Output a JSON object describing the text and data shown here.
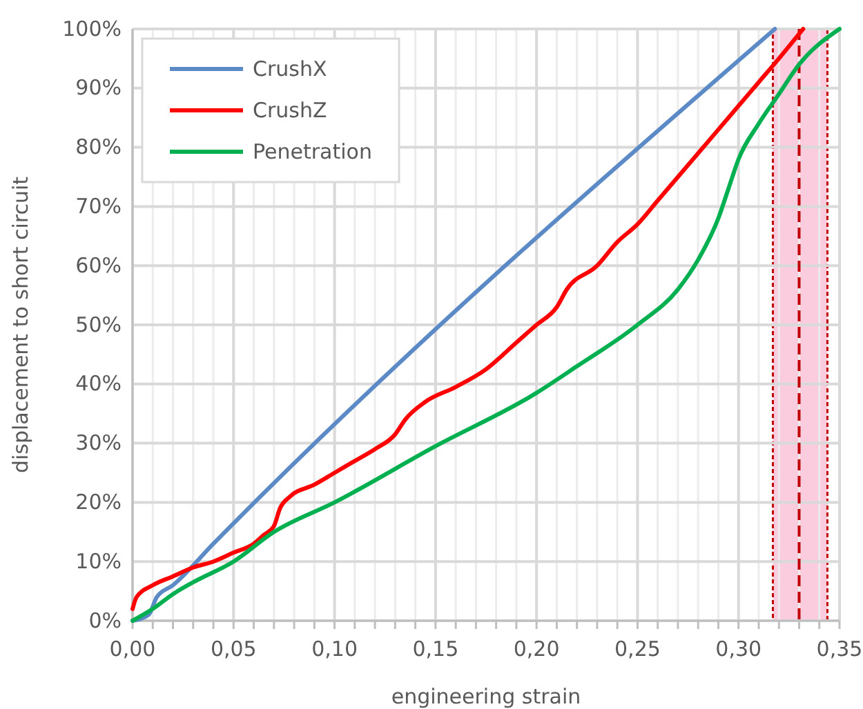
{
  "chart_data": {
    "type": "line",
    "xlabel": "engineering strain",
    "ylabel": "displacement to short circuit",
    "xlim": [
      0,
      0.35
    ],
    "ylim": [
      0,
      100
    ],
    "xticks": [
      {
        "value": 0,
        "label": "0,00"
      },
      {
        "value": 0.01,
        "label": null
      },
      {
        "value": 0.02,
        "label": null
      },
      {
        "value": 0.03,
        "label": null
      },
      {
        "value": 0.04,
        "label": null
      },
      {
        "value": 0.05,
        "label": "0,05"
      },
      {
        "value": 0.06,
        "label": null
      },
      {
        "value": 0.07,
        "label": null
      },
      {
        "value": 0.08,
        "label": null
      },
      {
        "value": 0.09,
        "label": null
      },
      {
        "value": 0.1,
        "label": "0,10"
      },
      {
        "value": 0.11,
        "label": null
      },
      {
        "value": 0.12,
        "label": null
      },
      {
        "value": 0.13,
        "label": null
      },
      {
        "value": 0.14,
        "label": null
      },
      {
        "value": 0.15,
        "label": "0,15"
      },
      {
        "value": 0.16,
        "label": null
      },
      {
        "value": 0.17,
        "label": null
      },
      {
        "value": 0.18,
        "label": null
      },
      {
        "value": 0.19,
        "label": null
      },
      {
        "value": 0.2,
        "label": "0,20"
      },
      {
        "value": 0.21,
        "label": null
      },
      {
        "value": 0.22,
        "label": null
      },
      {
        "value": 0.23,
        "label": null
      },
      {
        "value": 0.24,
        "label": null
      },
      {
        "value": 0.25,
        "label": "0,25"
      },
      {
        "value": 0.26,
        "label": null
      },
      {
        "value": 0.27,
        "label": null
      },
      {
        "value": 0.28,
        "label": null
      },
      {
        "value": 0.29,
        "label": null
      },
      {
        "value": 0.3,
        "label": "0,30"
      },
      {
        "value": 0.31,
        "label": null
      },
      {
        "value": 0.32,
        "label": null
      },
      {
        "value": 0.33,
        "label": null
      },
      {
        "value": 0.34,
        "label": null
      },
      {
        "value": 0.35,
        "label": "0,35"
      }
    ],
    "yticks": [
      {
        "value": 0,
        "label": "0%"
      },
      {
        "value": 10,
        "label": "10%"
      },
      {
        "value": 20,
        "label": "20%"
      },
      {
        "value": 30,
        "label": "30%"
      },
      {
        "value": 40,
        "label": "40%"
      },
      {
        "value": 50,
        "label": "50%"
      },
      {
        "value": 60,
        "label": "60%"
      },
      {
        "value": 70,
        "label": "70%"
      },
      {
        "value": 80,
        "label": "80%"
      },
      {
        "value": 90,
        "label": "90%"
      },
      {
        "value": 100,
        "label": "100%"
      }
    ],
    "grid": true,
    "legend": "top left",
    "marker": "none",
    "line_style": "solid",
    "bands": [
      {
        "axis": "x",
        "from": 0.317,
        "to": 0.344,
        "color": "#f9c3d8"
      }
    ],
    "ref_lines": [
      {
        "axis": "x",
        "value": 0.33,
        "color": "#c00000",
        "line_style": "dashed"
      }
    ],
    "series": [
      {
        "name": "CrushX",
        "color": "#5b8ac6",
        "x": [
          0,
          0.008,
          0.012,
          0.02,
          0.04,
          0.318
        ],
        "values": [
          0,
          1,
          4,
          6,
          13,
          100
        ]
      },
      {
        "name": "CrushZ",
        "color": "#ff0000",
        "x": [
          0,
          0.002,
          0.01,
          0.02,
          0.03,
          0.04,
          0.05,
          0.06,
          0.065,
          0.07,
          0.073,
          0.078,
          0.09,
          0.1,
          0.11,
          0.12,
          0.13,
          0.135,
          0.145,
          0.16,
          0.175,
          0.19,
          0.2,
          0.21,
          0.215,
          0.23,
          0.24,
          0.25,
          0.26,
          0.27,
          0.28,
          0.29,
          0.3,
          0.31,
          0.32,
          0.332
        ],
        "values": [
          2,
          4,
          6,
          7.5,
          9,
          10,
          11.5,
          13,
          14.5,
          16,
          19,
          21,
          23,
          25,
          27,
          29,
          31.5,
          34,
          37,
          39.5,
          42.5,
          47,
          50,
          53,
          56,
          60,
          64,
          67,
          71,
          75,
          79,
          83,
          87,
          91,
          95,
          100
        ]
      },
      {
        "name": "Penetration",
        "color": "#00b050",
        "x": [
          0,
          0.01,
          0.02,
          0.03,
          0.05,
          0.07,
          0.1,
          0.15,
          0.2,
          0.22,
          0.25,
          0.27,
          0.28,
          0.29,
          0.295,
          0.3,
          0.31,
          0.32,
          0.33,
          0.35
        ],
        "values": [
          0,
          2,
          4.5,
          6.5,
          10,
          15,
          20,
          29.5,
          38.5,
          43,
          50,
          56,
          61,
          68,
          73,
          78,
          84,
          89,
          94,
          100
        ]
      }
    ]
  }
}
